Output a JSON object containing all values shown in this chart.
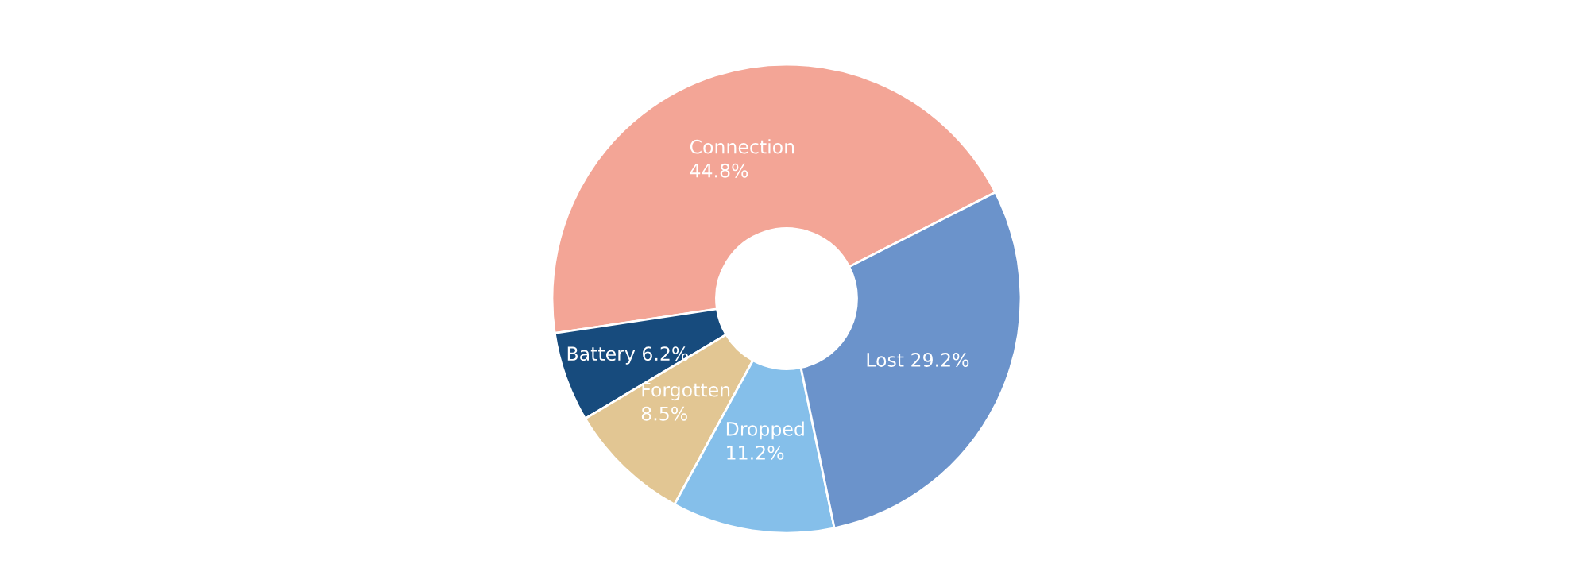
{
  "chart_data": {
    "type": "donut",
    "categories": [
      "Connection",
      "Battery",
      "Forgotten",
      "Dropped",
      "Lost"
    ],
    "values": [
      44.8,
      6.2,
      8.5,
      11.2,
      29.2
    ],
    "value_labels": [
      "44.8%",
      "6.2%",
      "8.5%",
      "11.2%",
      "29.2%"
    ],
    "colors": [
      "#f3a596",
      "#174b7d",
      "#e2c693",
      "#85bfea",
      "#6b93cb"
    ],
    "legend": false
  }
}
